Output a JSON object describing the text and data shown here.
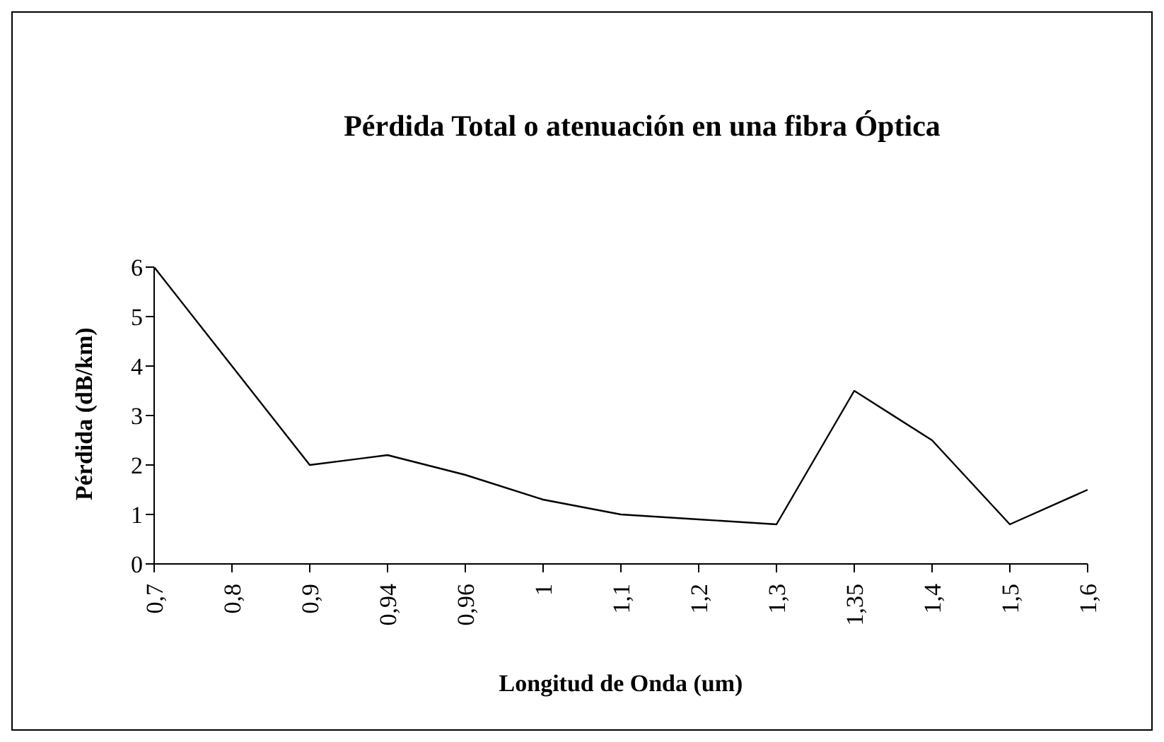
{
  "chart_data": {
    "type": "line",
    "title": "Pérdida Total o atenuación en una fibra Óptica",
    "xlabel": "Longitud de Onda (um)",
    "ylabel": "Pérdida (dB/km)",
    "categories": [
      "0,7",
      "0,8",
      "0,9",
      "0,94",
      "0,96",
      "1",
      "1,1",
      "1,2",
      "1,3",
      "1,35",
      "1,4",
      "1,5",
      "1,6"
    ],
    "series": [
      {
        "color": "#000000",
        "values": [
          6,
          4,
          2,
          2.2,
          1.8,
          1.3,
          1.0,
          0.9,
          0.8,
          3.5,
          2.5,
          0.8,
          1.5
        ]
      }
    ],
    "ylim": [
      0,
      6
    ],
    "yticks": [
      0,
      1,
      2,
      3,
      4,
      5,
      6
    ],
    "grid": false,
    "legend": false,
    "marker": "none",
    "line_style": "solid"
  }
}
